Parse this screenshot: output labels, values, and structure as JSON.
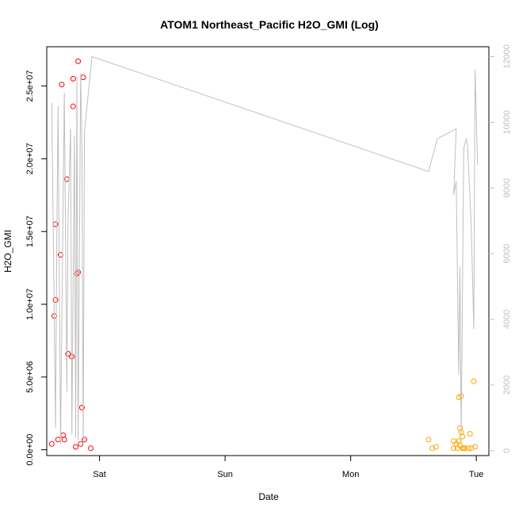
{
  "chart_data": {
    "type": "scatter",
    "title": "ATOM1 Northeast_Pacific H2O_GMI (Log)",
    "xlabel": "Date",
    "ylabel": "H2O_GMI",
    "x_ticks": [
      {
        "label": "Sat",
        "value": 0.0
      },
      {
        "label": "Sun",
        "value": 1.0
      },
      {
        "label": "Mon",
        "value": 2.0
      },
      {
        "label": "Tue",
        "value": 3.0
      }
    ],
    "xlim": [
      -0.42,
      3.1
    ],
    "ylim": [
      -400000,
      27700000
    ],
    "y_ticks": [
      {
        "label": "0.0e+00",
        "value": 0
      },
      {
        "label": "5.0e+06",
        "value": 5000000
      },
      {
        "label": "1.0e+07",
        "value": 10000000
      },
      {
        "label": "1.5e+07",
        "value": 15000000
      },
      {
        "label": "2.0e+07",
        "value": 20000000
      },
      {
        "label": "2.5e+07",
        "value": 25000000
      }
    ],
    "y2lim": [
      -150,
      12300
    ],
    "y2_ticks": [
      {
        "label": "0",
        "value": 0
      },
      {
        "label": "2000",
        "value": 2000
      },
      {
        "label": "4000",
        "value": 4000
      },
      {
        "label": "6000",
        "value": 6000
      },
      {
        "label": "8000",
        "value": 8000
      },
      {
        "label": "10000",
        "value": 10000
      },
      {
        "label": "12000",
        "value": 12000
      }
    ],
    "series": [
      {
        "color": "#ff0000",
        "points": [
          [
            -0.38,
            400000
          ],
          [
            -0.36,
            9200000
          ],
          [
            -0.35,
            15500000
          ],
          [
            -0.35,
            10300000
          ],
          [
            -0.33,
            700000
          ],
          [
            -0.31,
            13400000
          ],
          [
            -0.3,
            25100000
          ],
          [
            -0.29,
            1000000
          ],
          [
            -0.28,
            700000
          ],
          [
            -0.26,
            18600000
          ],
          [
            -0.25,
            6600000
          ],
          [
            -0.22,
            6400000
          ],
          [
            -0.21,
            25500000
          ],
          [
            -0.21,
            23600000
          ],
          [
            -0.19,
            200000
          ],
          [
            -0.18,
            12100000
          ],
          [
            -0.17,
            12200000
          ],
          [
            -0.17,
            26700000
          ],
          [
            -0.15,
            400000
          ],
          [
            -0.14,
            2900000
          ],
          [
            -0.13,
            25600000
          ],
          [
            -0.12,
            700000
          ],
          [
            -0.07,
            100000
          ]
        ]
      },
      {
        "color": "#ffa500",
        "points": [
          [
            2.62,
            700000
          ],
          [
            2.65,
            100000
          ],
          [
            2.68,
            200000
          ],
          [
            2.82,
            600000
          ],
          [
            2.82,
            100000
          ],
          [
            2.84,
            400000
          ],
          [
            2.85,
            100000
          ],
          [
            2.86,
            600000
          ],
          [
            2.86,
            3600000
          ],
          [
            2.87,
            1500000
          ],
          [
            2.87,
            300000
          ],
          [
            2.88,
            1200000
          ],
          [
            2.88,
            3700000
          ],
          [
            2.89,
            900000
          ],
          [
            2.89,
            100000
          ],
          [
            2.9,
            100000
          ],
          [
            2.91,
            100000
          ],
          [
            2.94,
            100000
          ],
          [
            2.95,
            1100000
          ],
          [
            2.96,
            100000
          ],
          [
            2.98,
            4700000
          ],
          [
            2.99,
            200000
          ]
        ]
      },
      {
        "color": "#bfbfbf",
        "axis": "right",
        "line": [
          [
            -0.38,
            10600
          ],
          [
            -0.35,
            700
          ],
          [
            -0.34,
            6500
          ],
          [
            -0.33,
            10500
          ],
          [
            -0.31,
            200
          ],
          [
            -0.28,
            10900
          ],
          [
            -0.26,
            1800
          ],
          [
            -0.25,
            7100
          ],
          [
            -0.23,
            9800
          ],
          [
            -0.22,
            500
          ],
          [
            -0.2,
            9600
          ],
          [
            -0.19,
            400
          ],
          [
            -0.18,
            11400
          ],
          [
            -0.17,
            300
          ],
          [
            -0.15,
            11500
          ],
          [
            -0.14,
            9200
          ],
          [
            -0.13,
            200
          ],
          [
            -0.12,
            9700
          ],
          [
            -0.06,
            12000
          ],
          [
            2.62,
            8500
          ],
          [
            2.69,
            9500
          ],
          [
            2.84,
            9800
          ],
          [
            2.82,
            7800
          ],
          [
            2.84,
            8200
          ],
          [
            2.86,
            2300
          ],
          [
            2.87,
            5600
          ],
          [
            2.88,
            500
          ],
          [
            2.9,
            9200
          ],
          [
            2.92,
            9500
          ],
          [
            2.93,
            9300
          ],
          [
            2.96,
            6800
          ],
          [
            2.98,
            3700
          ],
          [
            2.99,
            11600
          ],
          [
            3.01,
            8700
          ]
        ]
      }
    ]
  }
}
